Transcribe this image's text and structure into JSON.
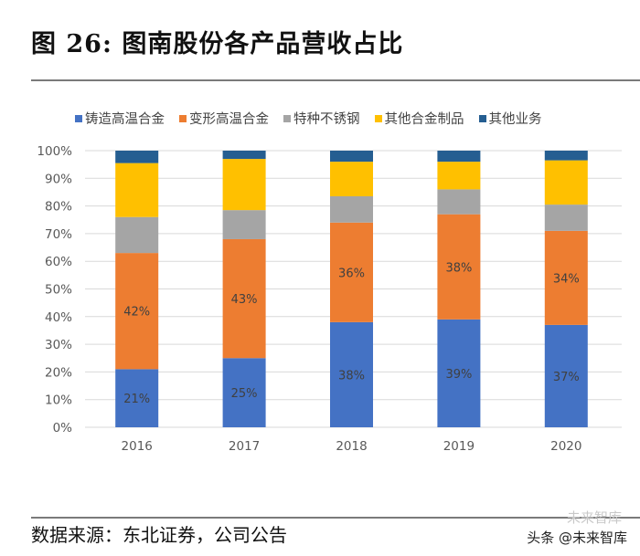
{
  "title": "图 26: 图南股份各产品营收占比",
  "source": "数据来源：东北证券，公司公告",
  "watermark": "头条 @未来智库",
  "watermark_faded": "未来智库",
  "chart_data": {
    "type": "bar",
    "stacked": true,
    "title": "图 26: 图南股份各产品营收占比",
    "xlabel": "",
    "ylabel": "",
    "ylim": [
      0,
      100
    ],
    "yticks": [
      "0%",
      "10%",
      "20%",
      "30%",
      "40%",
      "50%",
      "60%",
      "70%",
      "80%",
      "90%",
      "100%"
    ],
    "grid": true,
    "legend_position": "top",
    "categories": [
      "2016",
      "2017",
      "2018",
      "2019",
      "2020"
    ],
    "series": [
      {
        "name": "铸造高温合金",
        "color": "#4472C4",
        "values": [
          21,
          25,
          38,
          39,
          37
        ],
        "labels": [
          "21%",
          "25%",
          "38%",
          "39%",
          "37%"
        ]
      },
      {
        "name": "变形高温合金",
        "color": "#ED7D31",
        "values": [
          42,
          43,
          36,
          38,
          34
        ],
        "labels": [
          "42%",
          "43%",
          "36%",
          "38%",
          "34%"
        ]
      },
      {
        "name": "特种不锈钢",
        "color": "#A5A5A5",
        "values": [
          13,
          10.5,
          9.5,
          9,
          9.5
        ],
        "labels": []
      },
      {
        "name": "其他合金制品",
        "color": "#FFC000",
        "values": [
          19.5,
          18.5,
          12.5,
          10,
          16
        ],
        "labels": []
      },
      {
        "name": "其他业务",
        "color": "#255E91",
        "values": [
          4.5,
          3,
          4,
          4,
          3.5
        ],
        "labels": []
      }
    ]
  }
}
